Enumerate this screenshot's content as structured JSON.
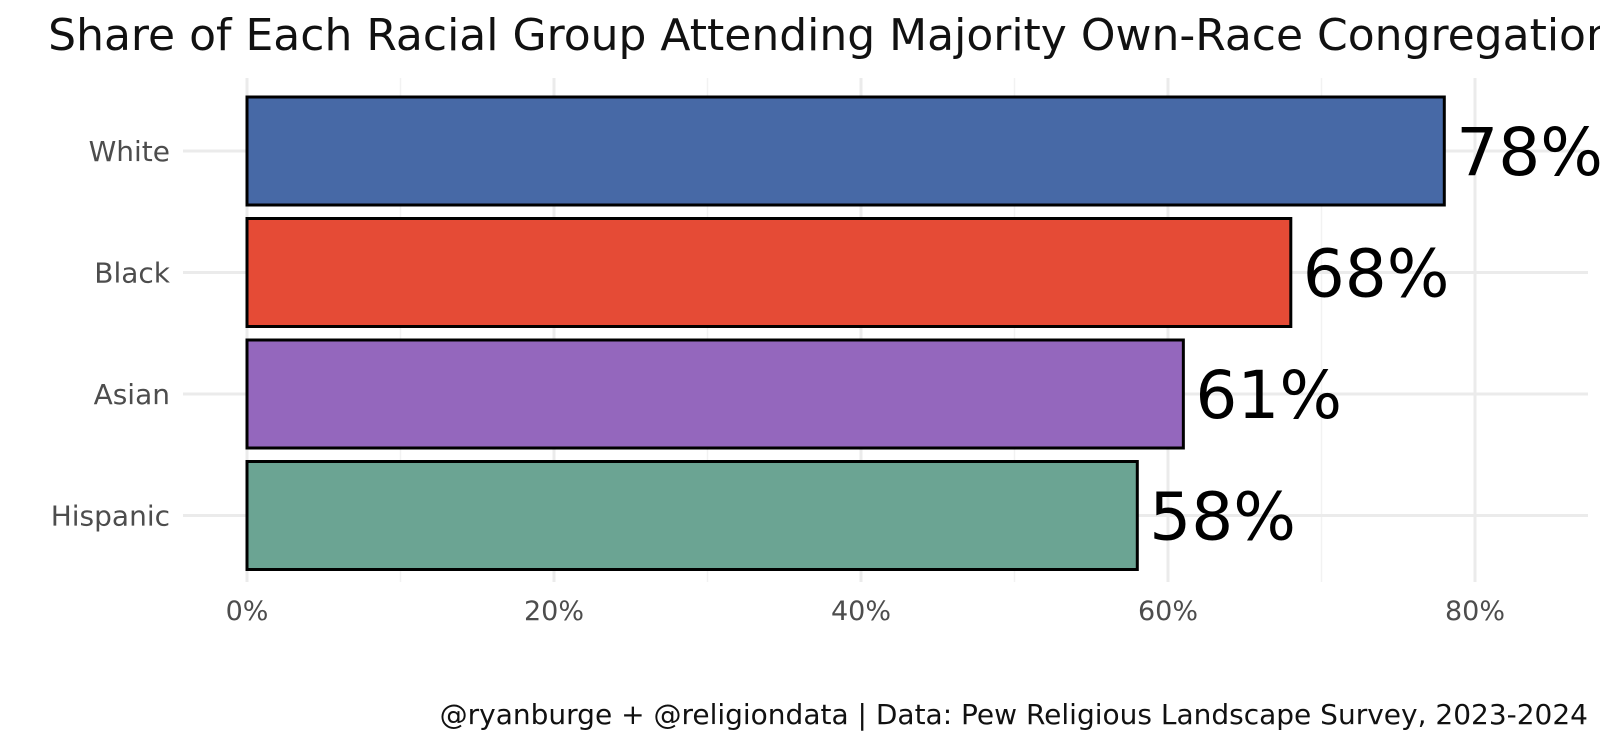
{
  "chart_data": {
    "type": "bar",
    "orientation": "horizontal",
    "title": "Share of Each Racial Group Attending Majority Own-Race Congregation",
    "categories": [
      "White",
      "Black",
      "Asian",
      "Hispanic"
    ],
    "values": [
      78,
      68,
      61,
      58
    ],
    "value_labels": [
      "78%",
      "68%",
      "61%",
      "58%"
    ],
    "colors": [
      "#4769a6",
      "#e54b36",
      "#9467bd",
      "#6ba493"
    ],
    "xlim": [
      0,
      87
    ],
    "xticks": [
      0,
      20,
      40,
      60,
      80
    ],
    "xtick_labels": [
      "0%",
      "20%",
      "40%",
      "60%",
      "80%"
    ],
    "xlabel": "",
    "ylabel": "",
    "grid": true,
    "caption": "@ryanburge + @religiondata | Data: Pew Religious Landscape Survey, 2023-2024"
  }
}
